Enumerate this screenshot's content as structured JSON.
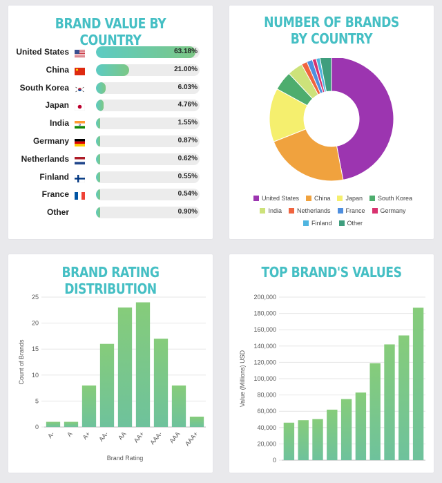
{
  "brand_value": {
    "title": "BRAND VALUE BY COUNTRY",
    "rows": [
      {
        "country": "United States",
        "flag": "us-flag-icon",
        "value_label": "63.18%",
        "value": 63.18
      },
      {
        "country": "China",
        "flag": "china-flag-icon",
        "value_label": "21.00%",
        "value": 21.0
      },
      {
        "country": "South Korea",
        "flag": "south-korea-flag-icon",
        "value_label": "6.03%",
        "value": 6.03
      },
      {
        "country": "Japan",
        "flag": "japan-flag-icon",
        "value_label": "4.76%",
        "value": 4.76
      },
      {
        "country": "India",
        "flag": "india-flag-icon",
        "value_label": "1.55%",
        "value": 1.55
      },
      {
        "country": "Germany",
        "flag": "germany-flag-icon",
        "value_label": "0.87%",
        "value": 0.87
      },
      {
        "country": "Netherlands",
        "flag": "netherlands-flag-icon",
        "value_label": "0.62%",
        "value": 0.62
      },
      {
        "country": "Finland",
        "flag": "finland-flag-icon",
        "value_label": "0.55%",
        "value": 0.55
      },
      {
        "country": "France",
        "flag": "france-flag-icon",
        "value_label": "0.54%",
        "value": 0.54
      },
      {
        "country": "Other",
        "flag": "",
        "value_label": "0.90%",
        "value": 0.9
      }
    ]
  },
  "brands_count": {
    "title": "NUMBER OF BRANDS BY COUNTRY"
  },
  "rating": {
    "title": "BRAND RATING DISTRIBUTION"
  },
  "top_values": {
    "title": "TOP BRAND'S VALUES"
  },
  "chart_data": [
    {
      "type": "bar",
      "title": "BRAND VALUE BY COUNTRY",
      "orientation": "horizontal",
      "categories": [
        "United States",
        "China",
        "South Korea",
        "Japan",
        "India",
        "Germany",
        "Netherlands",
        "Finland",
        "France",
        "Other"
      ],
      "values": [
        63.18,
        21.0,
        6.03,
        4.76,
        1.55,
        0.87,
        0.62,
        0.55,
        0.54,
        0.9
      ],
      "unit": "%"
    },
    {
      "type": "pie",
      "title": "NUMBER OF BRANDS BY COUNTRY",
      "donut": true,
      "legend_position": "bottom",
      "categories": [
        "United States",
        "China",
        "Japan",
        "South Korea",
        "India",
        "Netherlands",
        "France",
        "Germany",
        "Finland",
        "Other"
      ],
      "values": [
        47,
        22,
        14,
        5,
        4,
        1.5,
        1.5,
        1,
        1,
        3
      ],
      "colors": [
        "#9c35b0",
        "#f0a23e",
        "#f5ef6e",
        "#4ead6e",
        "#cde27a",
        "#f0643f",
        "#4f8fdf",
        "#d8326f",
        "#4fb5e0",
        "#3f9e7e"
      ]
    },
    {
      "type": "bar",
      "title": "BRAND RATING DISTRIBUTION",
      "xlabel": "Brand Rating",
      "ylabel": "Count of Brands",
      "categories": [
        "A-",
        "A",
        "A+",
        "AA-",
        "AA",
        "AA+",
        "AAA-",
        "AAA",
        "AAA+"
      ],
      "values": [
        1,
        1,
        8,
        16,
        23,
        24,
        17,
        8,
        2
      ],
      "ylim": [
        0,
        25
      ],
      "yticks": [
        0,
        5,
        10,
        15,
        20,
        25
      ],
      "grid": true
    },
    {
      "type": "bar",
      "title": "TOP BRAND'S VALUES",
      "xlabel": "",
      "ylabel": "Value (Millions) USD",
      "values": [
        46000,
        49000,
        50500,
        62000,
        75000,
        83000,
        119000,
        142000,
        153000,
        187000
      ],
      "ylim": [
        0,
        200000
      ],
      "yticks": [
        "0",
        "20,000",
        "40,000",
        "60,000",
        "80,000",
        "100,000",
        "120,000",
        "140,000",
        "160,000",
        "180,000",
        "200,000"
      ],
      "grid": true
    }
  ]
}
